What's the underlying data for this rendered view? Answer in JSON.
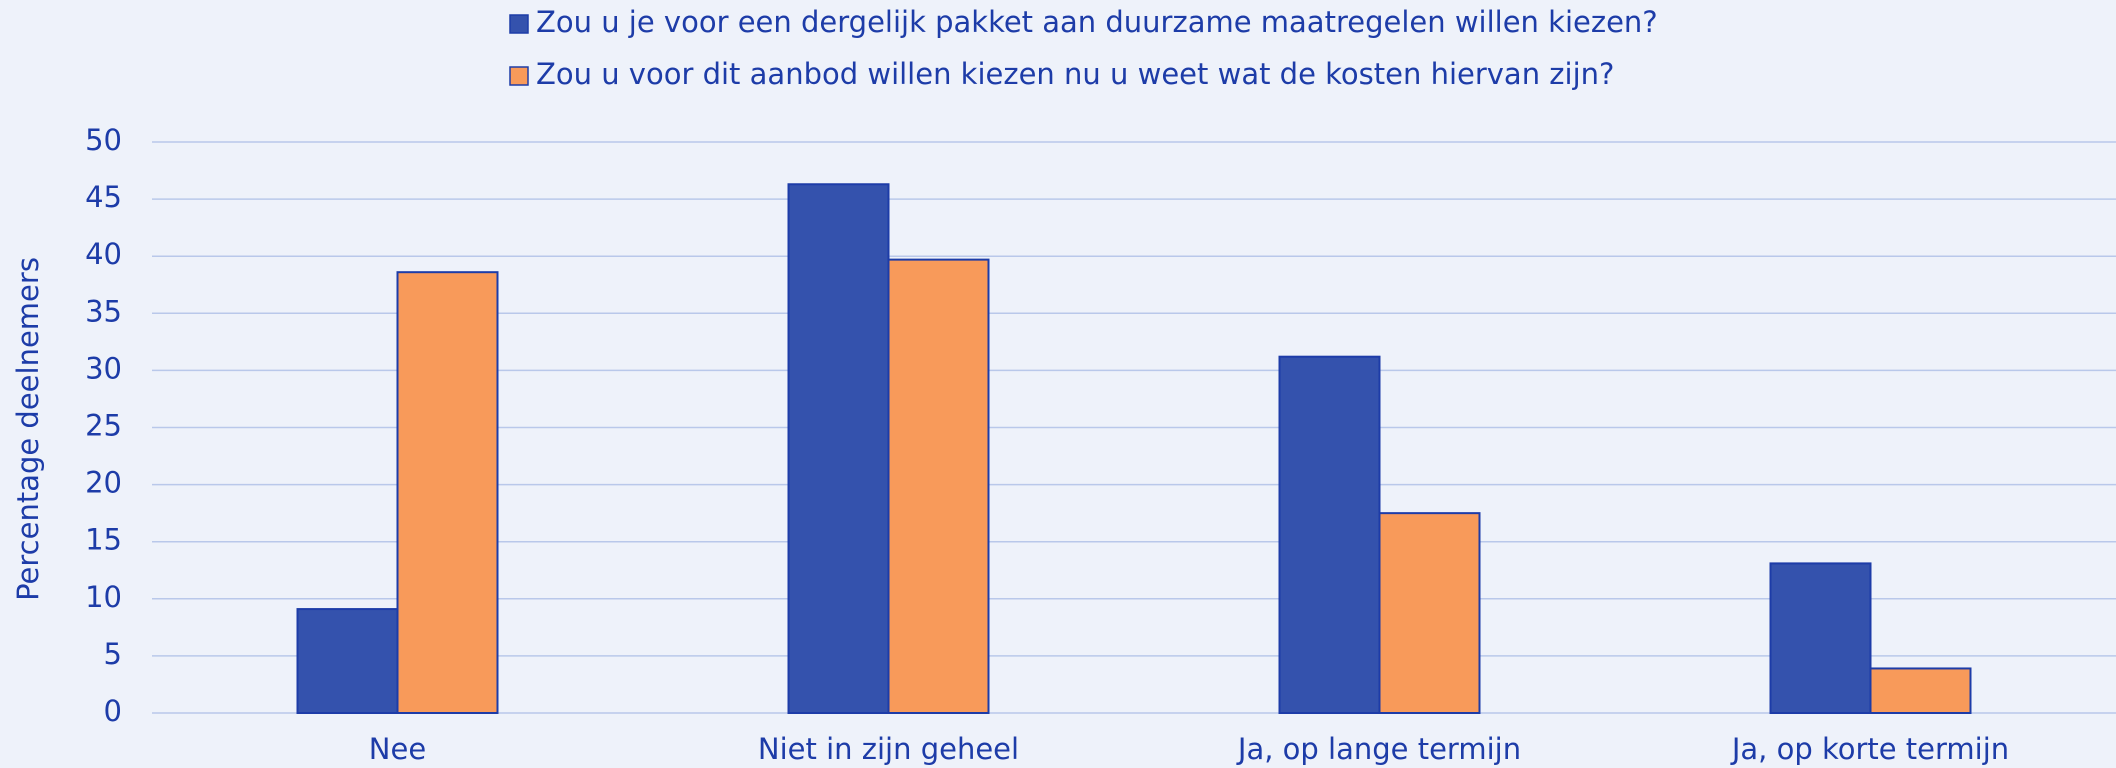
{
  "chart_data": {
    "type": "bar",
    "ylabel": "Percentage deelnemers",
    "categories": [
      "Nee",
      "Niet in zijn geheel",
      "Ja, op lange termijn",
      "Ja, op korte termijn"
    ],
    "series": [
      {
        "name": "Zou u je voor een dergelijk pakket aan duurzame maatregelen willen kiezen?",
        "color": "#3452ad",
        "values": [
          9.1,
          46.3,
          31.2,
          13.1
        ]
      },
      {
        "name": "Zou u voor dit aanbod willen kiezen nu u weet wat de kosten hiervan zijn?",
        "color": "#f89a5a",
        "values": [
          38.6,
          39.7,
          17.5,
          3.9
        ]
      }
    ],
    "ylim": [
      0,
      50
    ],
    "yticks": [
      0,
      5,
      10,
      15,
      20,
      25,
      30,
      35,
      40,
      45,
      50
    ],
    "grid": true,
    "legend": "top"
  }
}
